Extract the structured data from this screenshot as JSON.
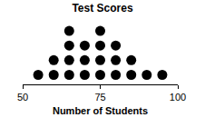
{
  "chart_data": {
    "type": "dot",
    "title": "Test Scores",
    "x_label": "Number of Students",
    "x": [
      55,
      60,
      65,
      70,
      75,
      80,
      85,
      90,
      95
    ],
    "values": [
      1,
      2,
      4,
      3,
      4,
      3,
      2,
      1,
      1
    ],
    "color": "#000000",
    "marker": "circle",
    "xlim": [
      50,
      100
    ],
    "xticks": [
      50,
      75,
      100
    ],
    "grid": false,
    "tick_labels": "x"
  }
}
